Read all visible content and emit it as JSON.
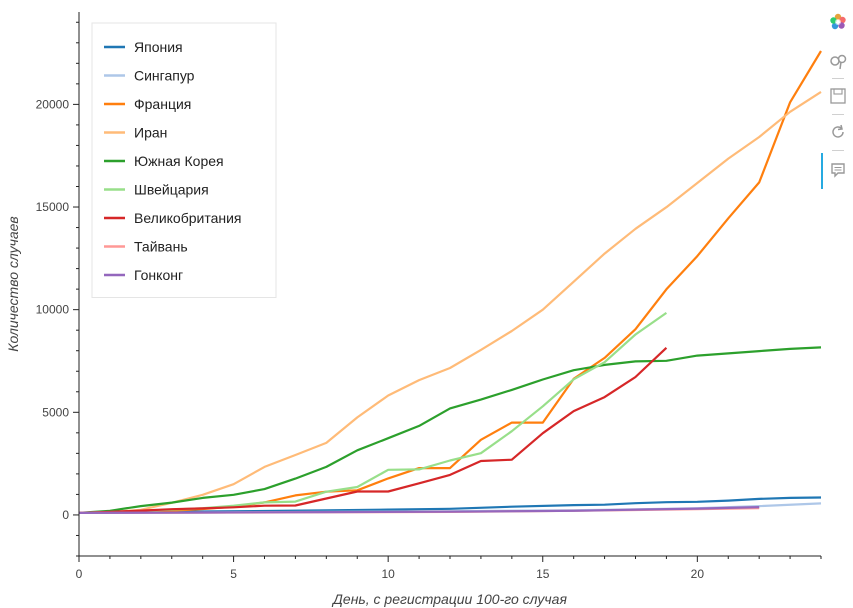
{
  "chart_data": {
    "type": "line",
    "xlabel": "День, с регистрации 100-го случая",
    "ylabel": "Количество случаев",
    "xlim": [
      0,
      24
    ],
    "ylim": [
      -2000,
      24500
    ],
    "xticks": [
      0,
      5,
      10,
      15,
      20
    ],
    "yticks": [
      0,
      5000,
      10000,
      15000,
      20000
    ],
    "grid": false,
    "legend_position": "top-left",
    "series": [
      {
        "name": "Япония",
        "color": "#1f77b4",
        "x": [
          0,
          2,
          4,
          6,
          8,
          10,
          12,
          14,
          16,
          17,
          18,
          19,
          20,
          21,
          22,
          23,
          24
        ],
        "y": [
          105,
          135,
          170,
          190,
          220,
          260,
          300,
          400,
          480,
          500,
          570,
          620,
          640,
          700,
          780,
          830,
          850
        ]
      },
      {
        "name": "Сингапур",
        "color": "#aec7e8",
        "x": [
          0,
          4,
          8,
          12,
          16,
          18,
          20,
          22,
          24
        ],
        "y": [
          100,
          120,
          150,
          180,
          230,
          270,
          330,
          430,
          560
        ]
      },
      {
        "name": "Франция",
        "color": "#ff7f0e",
        "x": [
          0,
          1,
          2,
          3,
          4,
          5,
          6,
          7,
          8,
          9,
          10,
          11,
          12,
          13,
          14,
          15,
          16,
          17,
          18,
          19,
          20,
          21,
          22,
          23,
          24
        ],
        "y": [
          100,
          130,
          190,
          210,
          290,
          400,
          610,
          950,
          1130,
          1200,
          1780,
          2280,
          2280,
          3660,
          4500,
          4500,
          6630,
          7650,
          9050,
          10990,
          12610,
          14450,
          16200,
          20100,
          22600
        ]
      },
      {
        "name": "Иран",
        "color": "#ffbb78",
        "x": [
          0,
          1,
          2,
          3,
          4,
          5,
          6,
          7,
          8,
          9,
          10,
          11,
          12,
          13,
          14,
          15,
          16,
          17,
          18,
          19,
          20,
          21,
          22,
          23,
          24
        ],
        "y": [
          100,
          140,
          250,
          590,
          980,
          1500,
          2340,
          2920,
          3510,
          4750,
          5820,
          6570,
          7160,
          8040,
          8960,
          10000,
          11360,
          12730,
          13940,
          14990,
          16170,
          17360,
          18410,
          19640,
          20610
        ]
      },
      {
        "name": "Южная Корея",
        "color": "#2ca02c",
        "x": [
          0,
          1,
          2,
          3,
          4,
          5,
          6,
          7,
          8,
          9,
          10,
          11,
          12,
          13,
          14,
          15,
          16,
          17,
          18,
          19,
          20,
          21,
          22,
          23,
          24
        ],
        "y": [
          100,
          200,
          430,
          600,
          830,
          980,
          1260,
          1770,
          2340,
          3150,
          3740,
          4340,
          5190,
          5620,
          6090,
          6600,
          7050,
          7310,
          7480,
          7510,
          7760,
          7870,
          7980,
          8090,
          8160
        ]
      },
      {
        "name": "Швейцария",
        "color": "#98df8a",
        "x": [
          0,
          1,
          2,
          3,
          4,
          5,
          6,
          7,
          8,
          9,
          10,
          11,
          12,
          13,
          14,
          15,
          16,
          17,
          18,
          19
        ],
        "y": [
          100,
          140,
          200,
          260,
          330,
          450,
          610,
          650,
          1130,
          1360,
          2200,
          2220,
          2650,
          3010,
          4080,
          5290,
          6610,
          7440,
          8790,
          9840
        ]
      },
      {
        "name": "Великобритания",
        "color": "#d62728",
        "x": [
          0,
          1,
          2,
          3,
          4,
          5,
          6,
          7,
          8,
          9,
          10,
          11,
          12,
          13,
          14,
          15,
          16,
          17,
          18,
          19
        ],
        "y": [
          100,
          150,
          210,
          280,
          320,
          370,
          450,
          460,
          800,
          1140,
          1140,
          1540,
          1950,
          2630,
          2690,
          3980,
          5060,
          5740,
          6720,
          8140
        ]
      },
      {
        "name": "Тайвань",
        "color": "#ff9896",
        "x": [
          0,
          4,
          8,
          12,
          16,
          20,
          22
        ],
        "y": [
          100,
          110,
          130,
          150,
          200,
          280,
          330
        ]
      },
      {
        "name": "Гонконг",
        "color": "#9467bd",
        "x": [
          0,
          4,
          8,
          12,
          16,
          18,
          20,
          22
        ],
        "y": [
          100,
          120,
          140,
          160,
          200,
          260,
          310,
          380
        ]
      }
    ]
  }
}
